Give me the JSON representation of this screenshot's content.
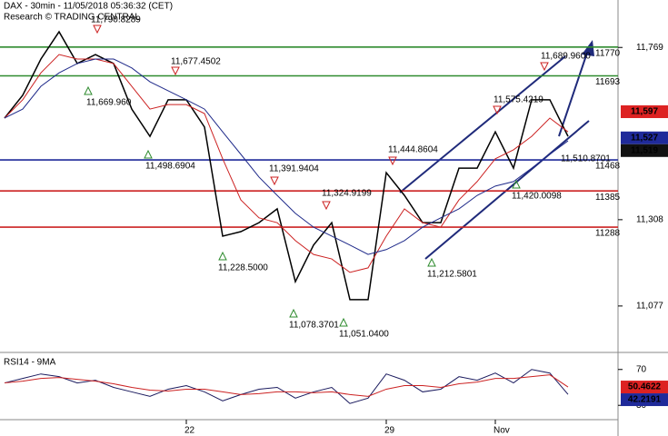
{
  "chart_data": [
    {
      "type": "line",
      "title": "DAX - 30min - 11/05/2018 05:36:32 (CET)",
      "subtitle": "Research © TRADING CENTRAL",
      "ylim": [
        10960,
        11896
      ],
      "yticks": [
        {
          "value": 11077,
          "label": "11,077"
        },
        {
          "value": 11308,
          "label": "11,308"
        },
        {
          "value": 11769,
          "label": "11,769"
        }
      ],
      "series": [
        {
          "color": "#000000",
          "values": [
            11580,
            11641,
            11738,
            11811,
            11726,
            11750,
            11726,
            11604,
            11531,
            11629,
            11629,
            11556,
            11264,
            11276,
            11300,
            11337,
            11142,
            11240,
            11300,
            11094,
            11094,
            11434,
            11373,
            11300,
            11300,
            11446,
            11446,
            11543,
            11446,
            11629,
            11629,
            11531
          ]
        },
        {
          "color": "#cc2222",
          "values": [
            11580,
            11629,
            11701,
            11750,
            11738,
            11738,
            11726,
            11665,
            11604,
            11616,
            11616,
            11592,
            11471,
            11361,
            11313,
            11300,
            11252,
            11215,
            11203,
            11167,
            11179,
            11264,
            11337,
            11300,
            11288,
            11361,
            11410,
            11471,
            11495,
            11531,
            11580,
            11543
          ]
        },
        {
          "color": "#1f2a8a",
          "values": [
            11580,
            11604,
            11665,
            11701,
            11726,
            11738,
            11738,
            11714,
            11677,
            11653,
            11629,
            11604,
            11543,
            11483,
            11422,
            11373,
            11325,
            11288,
            11264,
            11240,
            11215,
            11228,
            11252,
            11288,
            11313,
            11337,
            11373,
            11398,
            11410,
            11446,
            11483,
            11519
          ]
        }
      ],
      "levels": [
        {
          "value": 11770,
          "color": "#2e8b2e"
        },
        {
          "value": 11693,
          "color": "#2e8b2e"
        },
        {
          "value": 11468,
          "color": "#1f2a9a"
        },
        {
          "value": 11385,
          "color": "#cc2222"
        },
        {
          "value": 11288,
          "color": "#cc2222"
        }
      ],
      "price_tags": [
        {
          "value": 11597,
          "label": "11,597",
          "color": "#dd2222"
        },
        {
          "value": 11527,
          "label": "11,527",
          "color": "#1f2a9a"
        },
        {
          "value": 11519,
          "label": "11,519",
          "color": "#111111"
        }
      ],
      "annotations": [
        "11,790.8289",
        "11,669.960",
        "11,677.4502",
        "11,498.6904",
        "11,391.9404",
        "11,228.5000",
        "11,324.9199",
        "11,078.3701",
        "11,051.0400",
        "11,444.8604",
        "11,212.5801",
        "11,420.0098",
        "11,510.8701",
        "11,575.4219",
        "11,689.9600"
      ]
    },
    {
      "type": "line",
      "title": "RSI14 - 9MA",
      "ylim": [
        14,
        87
      ],
      "yticks": [
        30,
        70
      ],
      "categories": [
        null,
        null,
        null,
        null,
        null,
        null,
        null,
        null,
        null,
        null,
        "22",
        null,
        null,
        null,
        null,
        null,
        null,
        null,
        null,
        null,
        null,
        "29",
        null,
        null,
        null,
        null,
        null,
        "Nov",
        null,
        null,
        null,
        null
      ],
      "series": [
        {
          "color": "#1a1a5e",
          "values": [
            55,
            60,
            65,
            62,
            55,
            58,
            50,
            45,
            40,
            48,
            52,
            45,
            35,
            42,
            48,
            50,
            38,
            45,
            50,
            32,
            38,
            65,
            58,
            45,
            48,
            62,
            58,
            66,
            55,
            70,
            66,
            42.2191
          ]
        },
        {
          "color": "#cc2222",
          "values": [
            55,
            57,
            60,
            61,
            59,
            57,
            54,
            50,
            47,
            46,
            48,
            48,
            45,
            42,
            43,
            45,
            45,
            44,
            45,
            42,
            40,
            48,
            52,
            52,
            50,
            54,
            56,
            60,
            60,
            62,
            64,
            50.4622
          ]
        }
      ],
      "tags": [
        {
          "value": 50.4622,
          "color": "#dd2222"
        },
        {
          "value": 42.2191,
          "color": "#1f2a9a"
        }
      ]
    }
  ]
}
